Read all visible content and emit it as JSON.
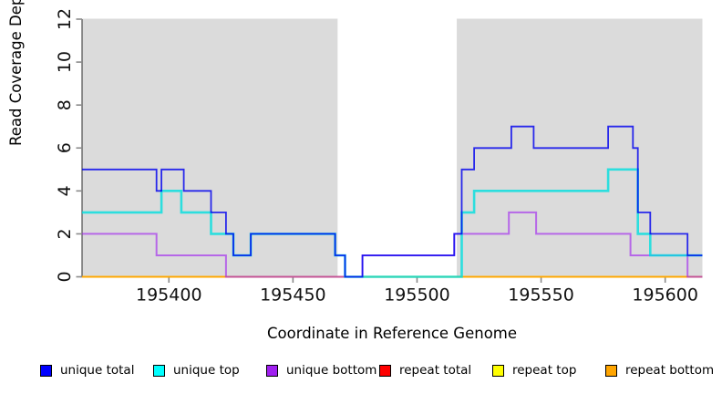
{
  "chart_data": {
    "type": "line",
    "subtype": "step-coverage",
    "title": "",
    "xlabel": "Coordinate in Reference Genome",
    "ylabel": "Read Coverage Depth",
    "xlim": [
      195365,
      195615
    ],
    "ylim": [
      0,
      12
    ],
    "x_ticks": [
      195400,
      195450,
      195500,
      195550,
      195600
    ],
    "y_ticks": [
      0,
      2,
      4,
      6,
      8,
      10,
      12
    ],
    "grid": "off",
    "background": "#ffffff",
    "shaded_regions": [
      {
        "name": "repeat-region-left",
        "x0": 195365,
        "x1": 195468,
        "color": "#DBDBDB"
      },
      {
        "name": "repeat-region-right",
        "x0": 195516,
        "x1": 195615,
        "color": "#DBDBDB"
      }
    ],
    "axis_color": "#4d4d4d",
    "tick_color": "#8a8a8a",
    "series": [
      {
        "name": "repeat total",
        "color": "#E00000",
        "opacity": 1,
        "width": 1.7,
        "steps": [
          [
            195365,
            0
          ]
        ]
      },
      {
        "name": "repeat top",
        "color": "#FFFF00",
        "opacity": 1,
        "width": 1.7,
        "steps": [
          [
            195365,
            0
          ]
        ]
      },
      {
        "name": "repeat bottom",
        "color": "#FFA500",
        "opacity": 1,
        "width": 1.7,
        "steps": [
          [
            195365,
            0
          ]
        ]
      },
      {
        "name": "unique bottom",
        "color": "#A020F0",
        "opacity": 0.62,
        "width": 2.0,
        "steps": [
          [
            195365,
            2
          ],
          [
            195395,
            1
          ],
          [
            195423,
            0
          ],
          [
            195478,
            1
          ],
          [
            195515,
            2
          ],
          [
            195537,
            3
          ],
          [
            195548,
            2
          ],
          [
            195586,
            1
          ],
          [
            195609,
            0
          ]
        ]
      },
      {
        "name": "unique top",
        "color": "#00DEDE",
        "opacity": 0.8,
        "width": 2.6,
        "steps": [
          [
            195365,
            3
          ],
          [
            195397,
            4
          ],
          [
            195405,
            3
          ],
          [
            195417,
            2
          ],
          [
            195426,
            1
          ],
          [
            195433,
            2
          ],
          [
            195467,
            1
          ],
          [
            195471,
            0
          ],
          [
            195518,
            3
          ],
          [
            195523,
            4
          ],
          [
            195577,
            5
          ],
          [
            195589,
            2
          ],
          [
            195594,
            1
          ]
        ]
      },
      {
        "name": "unique total",
        "color": "#0000EE",
        "opacity": 0.82,
        "width": 1.8,
        "steps": [
          [
            195365,
            5
          ],
          [
            195395,
            4
          ],
          [
            195397,
            5
          ],
          [
            195406,
            4
          ],
          [
            195417,
            3
          ],
          [
            195423,
            2
          ],
          [
            195426,
            1
          ],
          [
            195433,
            2
          ],
          [
            195467,
            1
          ],
          [
            195471,
            0
          ],
          [
            195478,
            1
          ],
          [
            195515,
            2
          ],
          [
            195518,
            5
          ],
          [
            195523,
            6
          ],
          [
            195538,
            7
          ],
          [
            195547,
            6
          ],
          [
            195577,
            7
          ],
          [
            195587,
            6
          ],
          [
            195589,
            3
          ],
          [
            195594,
            2
          ],
          [
            195609,
            1
          ]
        ]
      }
    ]
  },
  "legend": {
    "items": [
      {
        "label": "unique total",
        "color": "#0000FF"
      },
      {
        "label": "unique top",
        "color": "#00FFFF"
      },
      {
        "label": "unique bottom",
        "color": "#A020F0"
      },
      {
        "label": "repeat total",
        "color": "#FF0000"
      },
      {
        "label": "repeat top",
        "color": "#FFFF00"
      },
      {
        "label": "repeat bottom",
        "color": "#FFA500"
      }
    ]
  }
}
